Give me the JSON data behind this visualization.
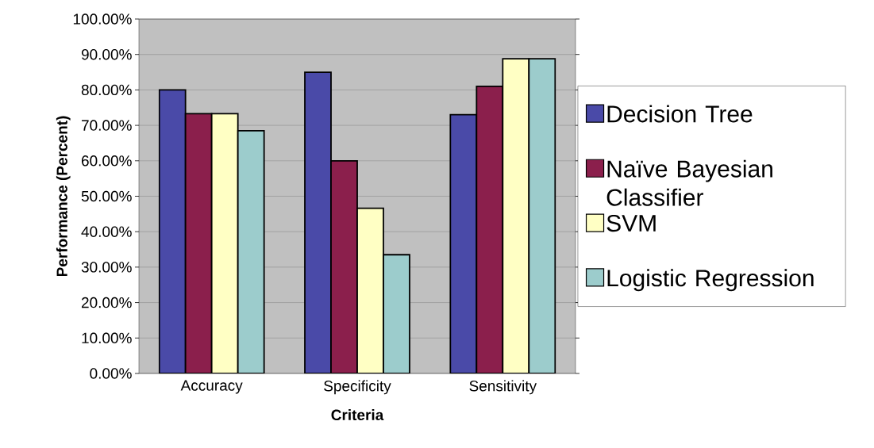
{
  "chart_data": {
    "type": "bar",
    "xlabel": "Criteria",
    "ylabel": "Performance (Percent)",
    "categories": [
      "Accuracy",
      "Specificity",
      "Sensitivity"
    ],
    "series": [
      {
        "name": "Decision Tree",
        "color": "#4a4aa8",
        "values": [
          80,
          85,
          73
        ]
      },
      {
        "name": "Naïve Bayesian Classifier",
        "color": "#8b1f4c",
        "values": [
          73.3,
          60,
          81
        ]
      },
      {
        "name": "SVM",
        "color": "#ffffc4",
        "values": [
          73.3,
          46.6,
          88.8
        ]
      },
      {
        "name": "Logistic Regression",
        "color": "#9ccccc",
        "values": [
          68.5,
          33.5,
          88.8
        ]
      }
    ],
    "ylim": [
      0,
      100
    ],
    "yticks": [
      {
        "value": 0,
        "label": "0.00%"
      },
      {
        "value": 10,
        "label": "10.00%"
      },
      {
        "value": 20,
        "label": "20.00%"
      },
      {
        "value": 30,
        "label": "30.00%"
      },
      {
        "value": 40,
        "label": "40.00%"
      },
      {
        "value": 50,
        "label": "50.00%"
      },
      {
        "value": 60,
        "label": "60.00%"
      },
      {
        "value": 70,
        "label": "70.00%"
      },
      {
        "value": 80,
        "label": "80.00%"
      },
      {
        "value": 90,
        "label": "90.00%"
      },
      {
        "value": 100,
        "label": "100.00%"
      }
    ],
    "grid": "y",
    "legend": "right"
  }
}
